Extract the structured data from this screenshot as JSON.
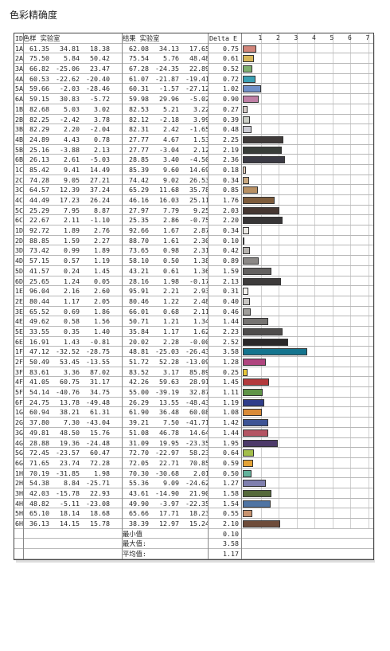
{
  "title": "色彩精确度",
  "header": {
    "id": "ID",
    "ref": "色样 实验室",
    "meas": "结果 实验室",
    "de": "Delta E",
    "ticks": [
      "1",
      "2",
      "3",
      "4",
      "5",
      "6",
      "7"
    ]
  },
  "chart_data": {
    "type": "bar",
    "xlim": [
      0,
      7.5
    ],
    "rows": [
      {
        "id": "1A",
        "ref": [
          "61.35",
          "34.81",
          "18.38"
        ],
        "meas": [
          "62.08",
          "34.13",
          "17.65"
        ],
        "de": 0.75,
        "color": "#d2857a"
      },
      {
        "id": "2A",
        "ref": [
          "75.50",
          "5.84",
          "50.42"
        ],
        "meas": [
          "75.54",
          "5.76",
          "48.48"
        ],
        "de": 0.61,
        "color": "#d6b65a"
      },
      {
        "id": "3A",
        "ref": [
          "66.82",
          "-25.06",
          "23.47"
        ],
        "meas": [
          "67.28",
          "-24.35",
          "22.89"
        ],
        "de": 0.52,
        "color": "#7fb070"
      },
      {
        "id": "4A",
        "ref": [
          "60.53",
          "-22.62",
          "-20.40"
        ],
        "meas": [
          "61.07",
          "-21.87",
          "-19.41"
        ],
        "de": 0.72,
        "color": "#3aa0b4"
      },
      {
        "id": "5A",
        "ref": [
          "59.66",
          "-2.03",
          "-28.46"
        ],
        "meas": [
          "60.31",
          "-1.57",
          "-27.12"
        ],
        "de": 1.02,
        "color": "#6f8fc8"
      },
      {
        "id": "6A",
        "ref": [
          "59.15",
          "30.83",
          "-5.72"
        ],
        "meas": [
          "59.98",
          "29.96",
          "-5.02"
        ],
        "de": 0.9,
        "color": "#c07fa6"
      },
      {
        "id": "1B",
        "ref": [
          "82.68",
          "5.03",
          "3.02"
        ],
        "meas": [
          "82.53",
          "5.21",
          "3.22"
        ],
        "de": 0.27,
        "color": "#d6cbc8"
      },
      {
        "id": "2B",
        "ref": [
          "82.25",
          "-2.42",
          "3.78"
        ],
        "meas": [
          "82.12",
          "-2.18",
          "3.99"
        ],
        "de": 0.39,
        "color": "#cccfc6"
      },
      {
        "id": "3B",
        "ref": [
          "82.29",
          "2.20",
          "-2.04"
        ],
        "meas": [
          "82.31",
          "2.42",
          "-1.65"
        ],
        "de": 0.48,
        "color": "#ccccd4"
      },
      {
        "id": "4B",
        "ref": [
          "24.89",
          "4.43",
          "0.78"
        ],
        "meas": [
          "27.77",
          "4.67",
          "1.53"
        ],
        "de": 2.25,
        "color": "#3f3a39"
      },
      {
        "id": "5B",
        "ref": [
          "25.16",
          "-3.88",
          "2.13"
        ],
        "meas": [
          "27.77",
          "-3.04",
          "2.12"
        ],
        "de": 2.19,
        "color": "#383d38"
      },
      {
        "id": "6B",
        "ref": [
          "26.13",
          "2.61",
          "-5.03"
        ],
        "meas": [
          "28.85",
          "3.40",
          "-4.50"
        ],
        "de": 2.36,
        "color": "#3b3a44"
      },
      {
        "id": "1C",
        "ref": [
          "85.42",
          "9.41",
          "14.49"
        ],
        "meas": [
          "85.39",
          "9.60",
          "14.69"
        ],
        "de": 0.18,
        "color": "#e3cbb8"
      },
      {
        "id": "2C",
        "ref": [
          "74.28",
          "9.05",
          "27.21"
        ],
        "meas": [
          "74.42",
          "9.02",
          "26.53"
        ],
        "de": 0.34,
        "color": "#c8a77f"
      },
      {
        "id": "3C",
        "ref": [
          "64.57",
          "12.39",
          "37.24"
        ],
        "meas": [
          "65.29",
          "11.68",
          "35.78"
        ],
        "de": 0.85,
        "color": "#b89063"
      },
      {
        "id": "4C",
        "ref": [
          "44.49",
          "17.23",
          "26.24"
        ],
        "meas": [
          "46.16",
          "16.03",
          "25.11"
        ],
        "de": 1.76,
        "color": "#7e5c3c"
      },
      {
        "id": "5C",
        "ref": [
          "25.29",
          "7.95",
          "8.87"
        ],
        "meas": [
          "27.97",
          "7.79",
          "9.25"
        ],
        "de": 2.03,
        "color": "#453631"
      },
      {
        "id": "6C",
        "ref": [
          "22.67",
          "2.11",
          "-1.10"
        ],
        "meas": [
          "25.35",
          "2.86",
          "-0.75"
        ],
        "de": 2.2,
        "color": "#373536"
      },
      {
        "id": "1D",
        "ref": [
          "92.72",
          "1.89",
          "2.76"
        ],
        "meas": [
          "92.66",
          "1.67",
          "2.87"
        ],
        "de": 0.34,
        "color": "#ece9e4"
      },
      {
        "id": "2D",
        "ref": [
          "88.85",
          "1.59",
          "2.27"
        ],
        "meas": [
          "88.70",
          "1.61",
          "2.30"
        ],
        "de": 0.1,
        "color": "#e0ddd8"
      },
      {
        "id": "3D",
        "ref": [
          "73.42",
          "0.99",
          "1.89"
        ],
        "meas": [
          "73.65",
          "0.98",
          "2.31"
        ],
        "de": 0.42,
        "color": "#b7b4b0"
      },
      {
        "id": "4D",
        "ref": [
          "57.15",
          "0.57",
          "1.19"
        ],
        "meas": [
          "58.10",
          "0.50",
          "1.38"
        ],
        "de": 0.89,
        "color": "#8b8886"
      },
      {
        "id": "5D",
        "ref": [
          "41.57",
          "0.24",
          "1.45"
        ],
        "meas": [
          "43.21",
          "0.61",
          "1.36"
        ],
        "de": 1.59,
        "color": "#636160"
      },
      {
        "id": "6D",
        "ref": [
          "25.65",
          "1.24",
          "0.05"
        ],
        "meas": [
          "28.16",
          "1.98",
          "-0.17"
        ],
        "de": 2.13,
        "color": "#3d3b3b"
      },
      {
        "id": "1E",
        "ref": [
          "96.04",
          "2.16",
          "2.60"
        ],
        "meas": [
          "95.91",
          "2.21",
          "2.93"
        ],
        "de": 0.31,
        "color": "#f4f2ee"
      },
      {
        "id": "2E",
        "ref": [
          "80.44",
          "1.17",
          "2.05"
        ],
        "meas": [
          "80.46",
          "1.22",
          "2.48"
        ],
        "de": 0.4,
        "color": "#c9c7c4"
      },
      {
        "id": "3E",
        "ref": [
          "65.52",
          "0.69",
          "1.86"
        ],
        "meas": [
          "66.01",
          "0.68",
          "2.11"
        ],
        "de": 0.46,
        "color": "#a09e9b"
      },
      {
        "id": "4E",
        "ref": [
          "49.62",
          "0.58",
          "1.56"
        ],
        "meas": [
          "50.71",
          "1.21",
          "1.34"
        ],
        "de": 1.44,
        "color": "#767472"
      },
      {
        "id": "5E",
        "ref": [
          "33.55",
          "0.35",
          "1.40"
        ],
        "meas": [
          "35.84",
          "1.17",
          "1.62"
        ],
        "de": 2.23,
        "color": "#4e4c4b"
      },
      {
        "id": "6E",
        "ref": [
          "16.91",
          "1.43",
          "-0.81"
        ],
        "meas": [
          "20.02",
          "2.28",
          "-0.00"
        ],
        "de": 2.52,
        "color": "#2a2829"
      },
      {
        "id": "1F",
        "ref": [
          "47.12",
          "-32.52",
          "-28.75"
        ],
        "meas": [
          "48.81",
          "-25.03",
          "-26.43"
        ],
        "de": 3.58,
        "color": "#14748e"
      },
      {
        "id": "2F",
        "ref": [
          "50.49",
          "53.45",
          "-13.55"
        ],
        "meas": [
          "51.72",
          "52.28",
          "-13.09"
        ],
        "de": 1.28,
        "color": "#b0457f"
      },
      {
        "id": "3F",
        "ref": [
          "83.61",
          "3.36",
          "87.02"
        ],
        "meas": [
          "83.52",
          "3.17",
          "85.89"
        ],
        "de": 0.25,
        "color": "#e8c63a"
      },
      {
        "id": "4F",
        "ref": [
          "41.05",
          "60.75",
          "31.17"
        ],
        "meas": [
          "42.26",
          "59.63",
          "28.91"
        ],
        "de": 1.45,
        "color": "#b33a3d"
      },
      {
        "id": "5F",
        "ref": [
          "54.14",
          "-40.76",
          "34.75"
        ],
        "meas": [
          "55.00",
          "-39.19",
          "32.87"
        ],
        "de": 1.11,
        "color": "#5f9447"
      },
      {
        "id": "6F",
        "ref": [
          "24.75",
          "13.78",
          "-49.48"
        ],
        "meas": [
          "26.29",
          "13.55",
          "-48.43"
        ],
        "de": 1.19,
        "color": "#2f3d8a"
      },
      {
        "id": "1G",
        "ref": [
          "60.94",
          "38.21",
          "61.31"
        ],
        "meas": [
          "61.90",
          "36.48",
          "60.08"
        ],
        "de": 1.08,
        "color": "#d88a37"
      },
      {
        "id": "2G",
        "ref": [
          "37.80",
          "7.30",
          "-43.04"
        ],
        "meas": [
          "39.21",
          "7.50",
          "-41.71"
        ],
        "de": 1.42,
        "color": "#3d5495"
      },
      {
        "id": "3G",
        "ref": [
          "49.81",
          "48.50",
          "15.76"
        ],
        "meas": [
          "51.08",
          "46.78",
          "14.64"
        ],
        "de": 1.44,
        "color": "#b45463"
      },
      {
        "id": "4G",
        "ref": [
          "28.88",
          "19.36",
          "-24.48"
        ],
        "meas": [
          "31.09",
          "19.95",
          "-23.35"
        ],
        "de": 1.95,
        "color": "#4d3a6a"
      },
      {
        "id": "5G",
        "ref": [
          "72.45",
          "-23.57",
          "60.47"
        ],
        "meas": [
          "72.70",
          "-22.97",
          "58.23"
        ],
        "de": 0.64,
        "color": "#a3be4a"
      },
      {
        "id": "6G",
        "ref": [
          "71.65",
          "23.74",
          "72.28"
        ],
        "meas": [
          "72.05",
          "22.71",
          "70.85"
        ],
        "de": 0.59,
        "color": "#e3a236"
      },
      {
        "id": "1H",
        "ref": [
          "70.19",
          "-31.85",
          "1.98"
        ],
        "meas": [
          "70.30",
          "-30.68",
          "2.01"
        ],
        "de": 0.5,
        "color": "#64b39c"
      },
      {
        "id": "2H",
        "ref": [
          "54.38",
          "8.84",
          "-25.71"
        ],
        "meas": [
          "55.36",
          "9.09",
          "-24.62"
        ],
        "de": 1.27,
        "color": "#7f7fae"
      },
      {
        "id": "3H",
        "ref": [
          "42.03",
          "-15.78",
          "22.93"
        ],
        "meas": [
          "43.61",
          "-14.90",
          "21.90"
        ],
        "de": 1.58,
        "color": "#55693a"
      },
      {
        "id": "4H",
        "ref": [
          "48.82",
          "-5.11",
          "-23.08"
        ],
        "meas": [
          "49.90",
          "-3.97",
          "-22.35"
        ],
        "de": 1.54,
        "color": "#4f74a3"
      },
      {
        "id": "5H",
        "ref": [
          "65.10",
          "18.14",
          "18.68"
        ],
        "meas": [
          "65.66",
          "17.71",
          "18.23"
        ],
        "de": 0.55,
        "color": "#c8936f"
      },
      {
        "id": "6H",
        "ref": [
          "36.13",
          "14.15",
          "15.78"
        ],
        "meas": [
          "38.39",
          "12.97",
          "15.24"
        ],
        "de": 2.1,
        "color": "#6e4c3a"
      }
    ]
  },
  "summary": [
    {
      "label": "最小值",
      "value": "0.10"
    },
    {
      "label": "最大值:",
      "value": "3.58"
    },
    {
      "label": "平均值:",
      "value": "1.17"
    }
  ]
}
